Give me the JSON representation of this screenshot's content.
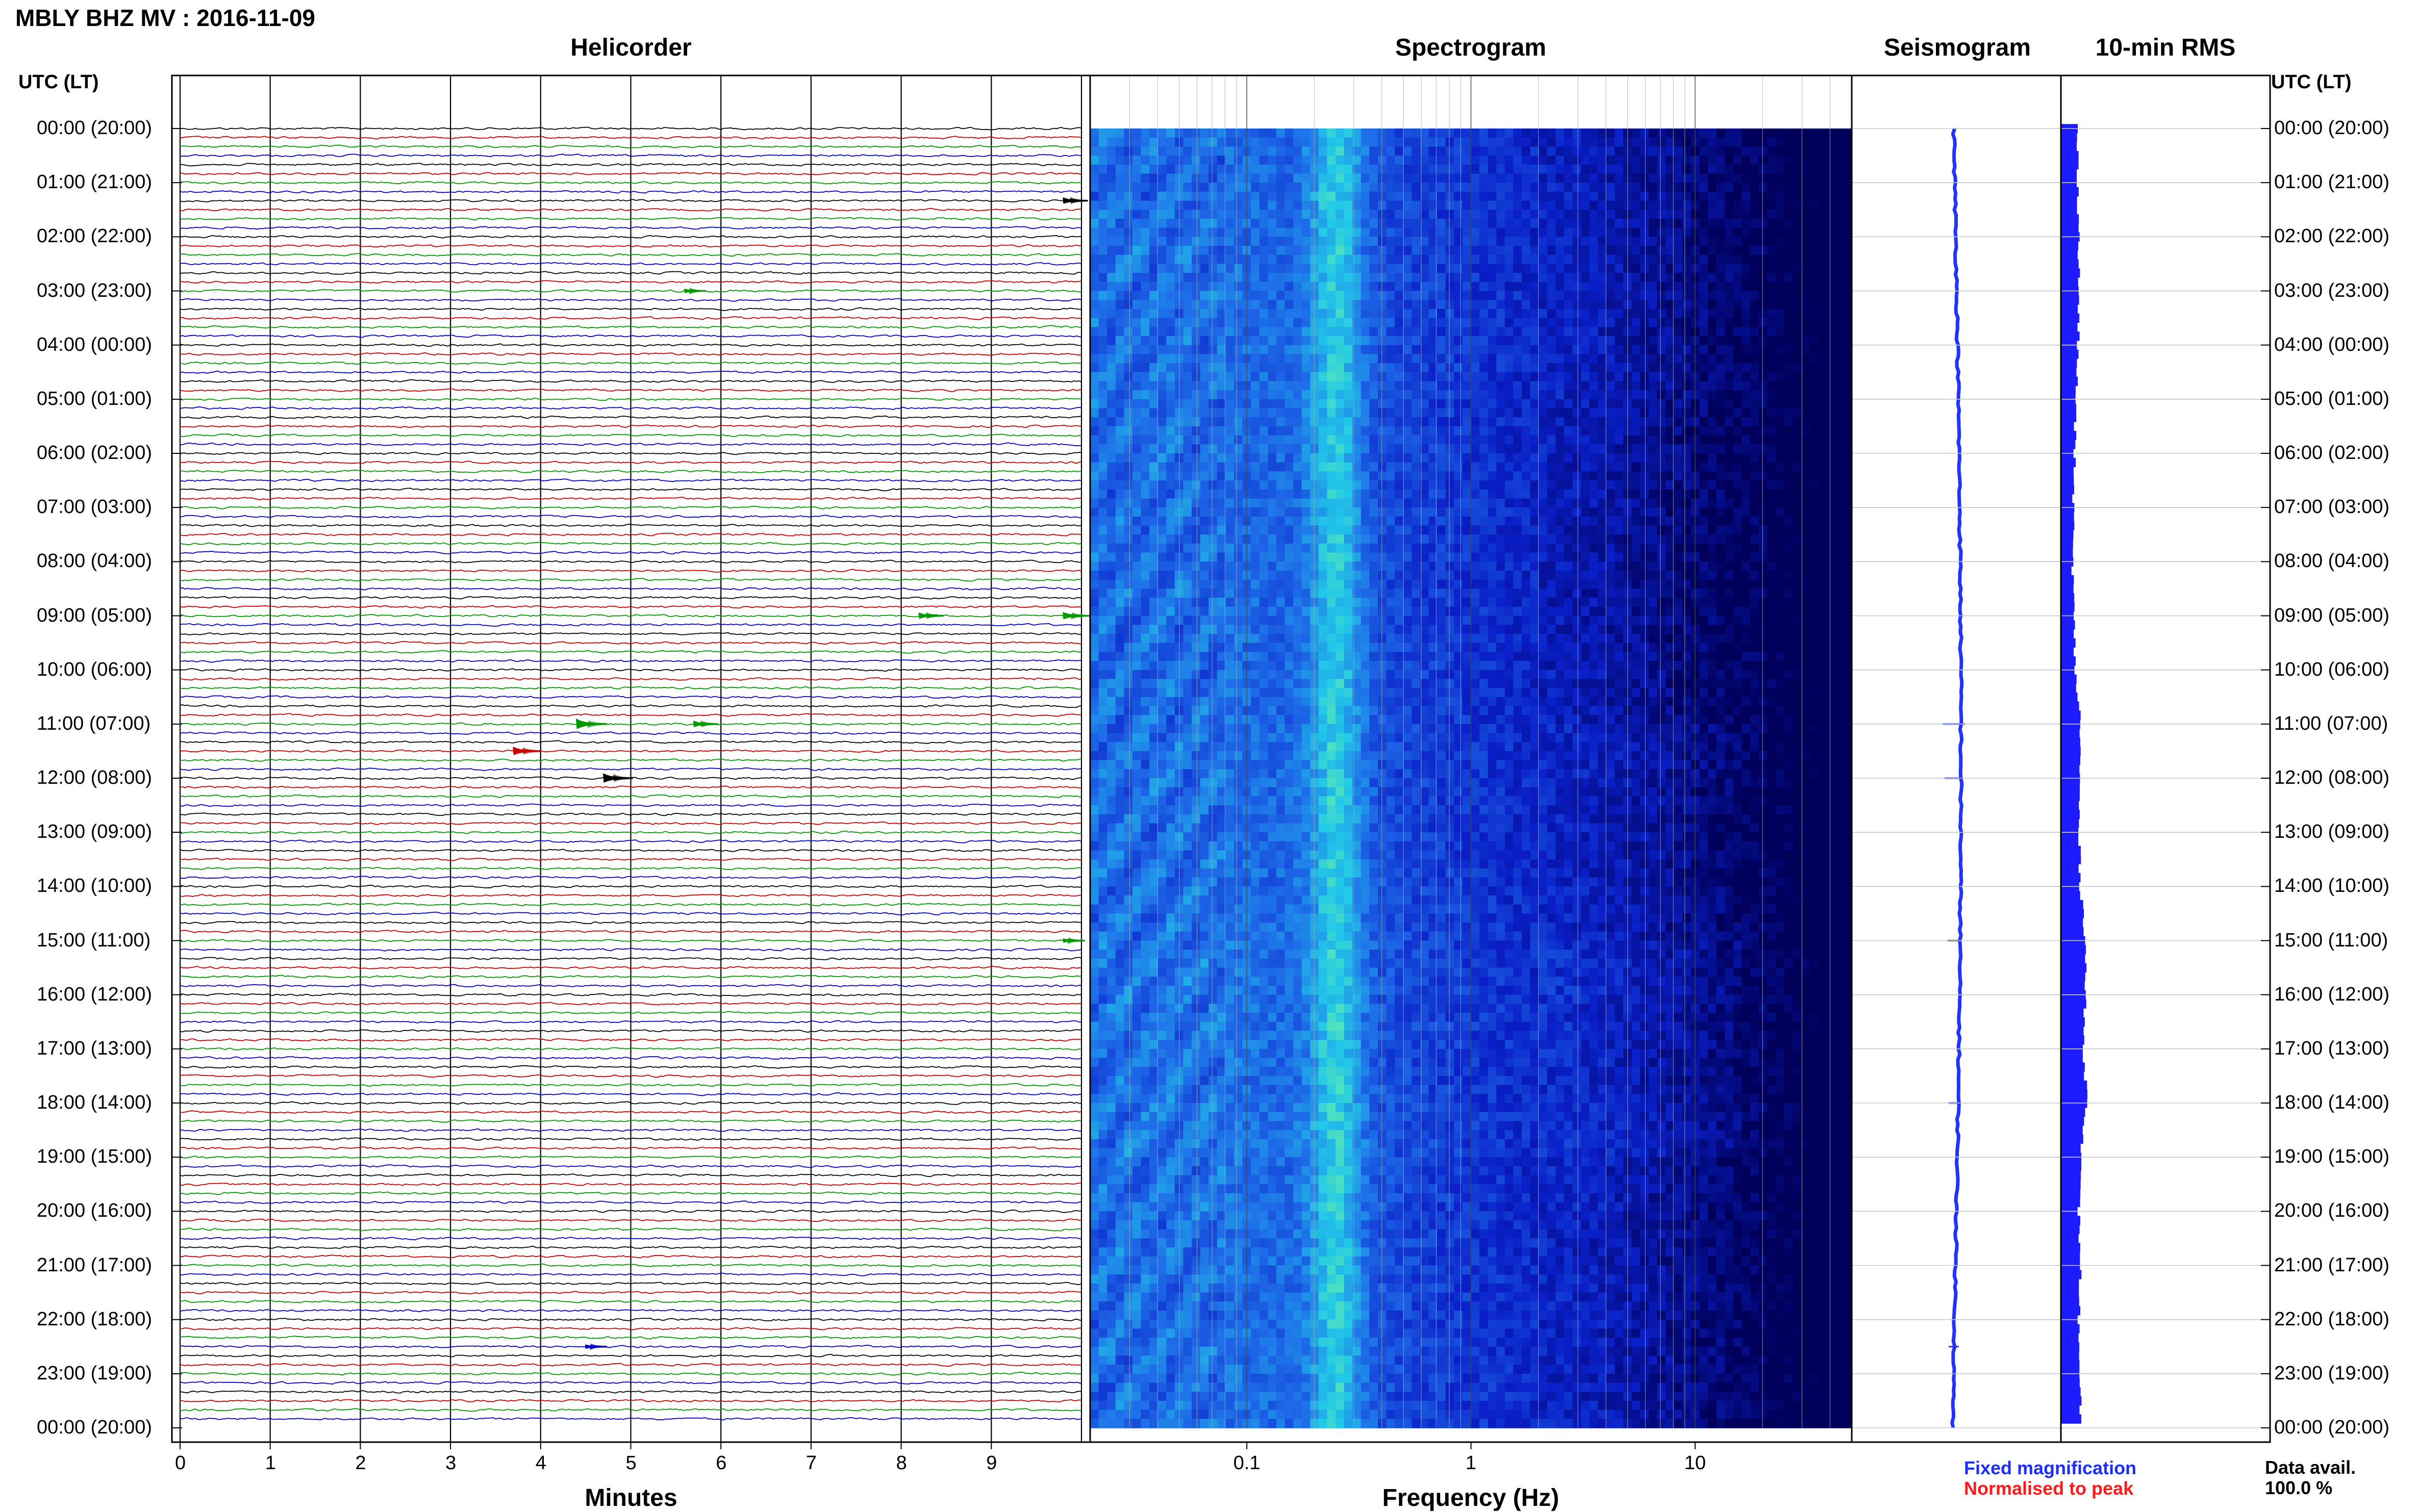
{
  "header": {
    "title": "MBLY BHZ MV : 2016-11-09",
    "utc_left": "UTC (LT)",
    "utc_right": "UTC (LT)"
  },
  "panels": {
    "helicorder": "Helicorder",
    "spectrogram": "Spectrogram",
    "seismogram": "Seismogram",
    "rms": "10-min RMS"
  },
  "footer": {
    "legend_fixed": "Fixed magnification",
    "legend_normalised": "Normalised to peak",
    "data_avail_label": "Data avail.",
    "data_avail_value": "100.0 %"
  },
  "colors": {
    "trace_cycle": [
      "#000000",
      "#cc0000",
      "#009900",
      "#0000cc"
    ],
    "fixed_magnification": "#1a2fff",
    "normalised_to_peak": "#ff1a1a",
    "rms_bar": "#1c1cff",
    "seismogram_trace": "#2233ff"
  },
  "chart_data": [
    {
      "type": "line",
      "panel": "Helicorder",
      "xlabel": "Minutes",
      "x_ticks": [
        "0",
        "1",
        "2",
        "3",
        "4",
        "5",
        "6",
        "7",
        "8",
        "9"
      ],
      "xlim": [
        0,
        10
      ],
      "y_tick_labels": [
        "00:00 (20:00)",
        "01:00 (21:00)",
        "02:00 (22:00)",
        "03:00 (23:00)",
        "04:00 (00:00)",
        "05:00 (01:00)",
        "06:00 (02:00)",
        "07:00 (03:00)",
        "08:00 (04:00)",
        "09:00 (05:00)",
        "10:00 (06:00)",
        "11:00 (07:00)",
        "12:00 (08:00)",
        "13:00 (09:00)",
        "14:00 (10:00)",
        "15:00 (11:00)",
        "16:00 (12:00)",
        "17:00 (13:00)",
        "18:00 (14:00)",
        "19:00 (15:00)",
        "20:00 (16:00)",
        "21:00 (17:00)",
        "22:00 (18:00)",
        "23:00 (19:00)",
        "00:00 (20:00)"
      ],
      "rows": 144,
      "minutes_per_row": 10,
      "events": [
        {
          "hour": 1.4,
          "minute": 9.8,
          "amp": 0.6
        },
        {
          "hour": 3.0,
          "minute": 5.6,
          "amp": 0.4
        },
        {
          "hour": 9.0,
          "minute": 9.8,
          "amp": 0.7
        },
        {
          "hour": 9.0,
          "minute": 8.2,
          "amp": 0.6
        },
        {
          "hour": 11.0,
          "minute": 4.4,
          "amp": 1.0
        },
        {
          "hour": 11.0,
          "minute": 5.7,
          "amp": 0.6
        },
        {
          "hour": 11.5,
          "minute": 3.7,
          "amp": 0.8
        },
        {
          "hour": 12.0,
          "minute": 4.7,
          "amp": 0.9
        },
        {
          "hour": 15.0,
          "minute": 9.8,
          "amp": 0.4
        },
        {
          "hour": 22.5,
          "minute": 4.5,
          "amp": 0.4
        }
      ]
    },
    {
      "type": "heatmap",
      "panel": "Spectrogram",
      "xlabel": "Frequency (Hz)",
      "x_scale": "log",
      "xlim": [
        0.02,
        50
      ],
      "x_tick_labels": [
        "0.1",
        "1",
        "10"
      ],
      "x_tick_values": [
        0.1,
        1,
        10
      ],
      "microseism_peak_hz": 0.25,
      "colormap": [
        "#00005a",
        "#0a1fc8",
        "#1e6be8",
        "#22c8e8",
        "#80ff90"
      ]
    },
    {
      "type": "line",
      "panel": "Seismogram",
      "description": "long-period trace vs time of day"
    },
    {
      "type": "bar",
      "panel": "10-min RMS",
      "orientation": "horizontal",
      "rms_by_hour": [
        0.45,
        0.48,
        0.5,
        0.5,
        0.48,
        0.42,
        0.38,
        0.35,
        0.33,
        0.36,
        0.4,
        0.55,
        0.52,
        0.5,
        0.55,
        0.7,
        0.68,
        0.62,
        0.75,
        0.55,
        0.5,
        0.55,
        0.5,
        0.48,
        0.6
      ]
    }
  ]
}
